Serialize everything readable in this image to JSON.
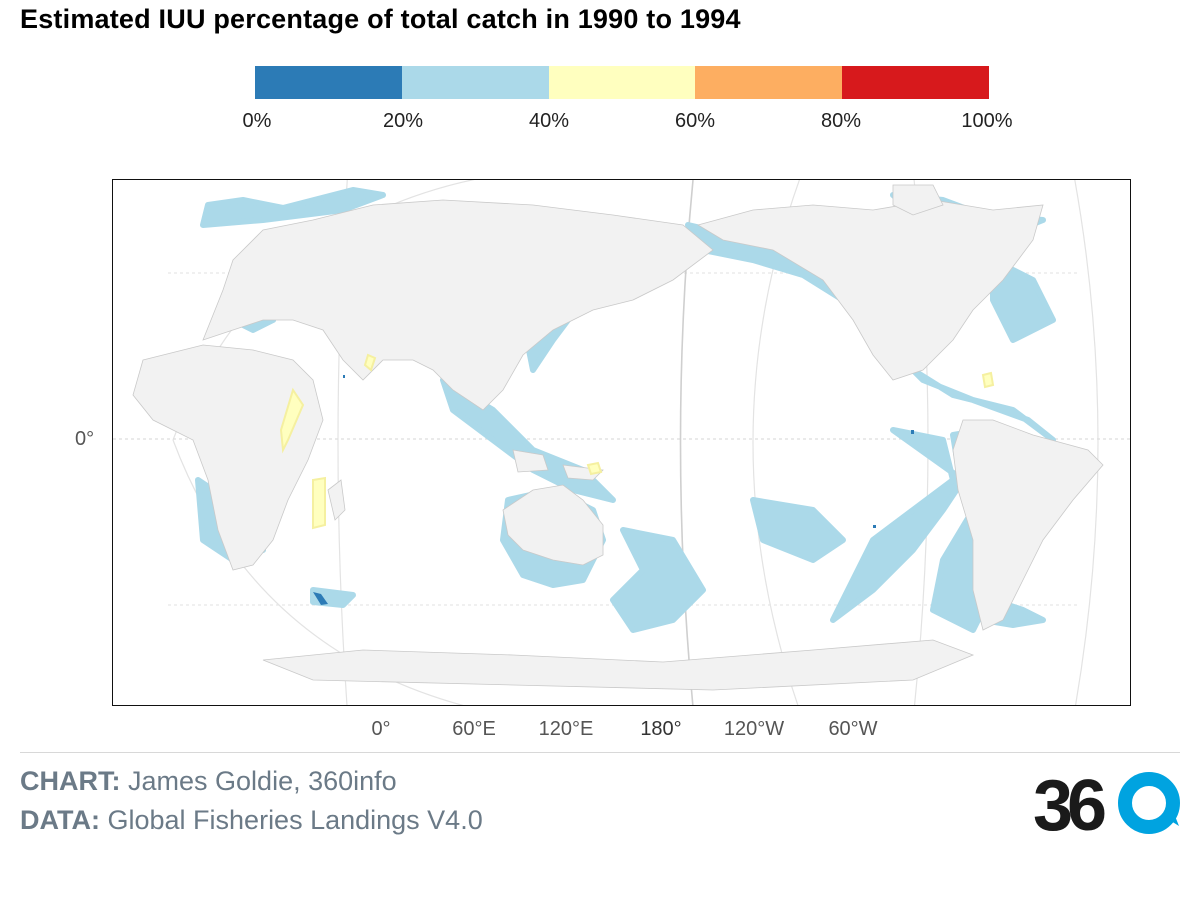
{
  "title": "Estimated IUU percentage of total catch in 1990 to 1994",
  "legend": {
    "colors": [
      "#2c7bb6",
      "#abd9e9",
      "#ffffbf",
      "#fdae61",
      "#d7191c"
    ],
    "ticks": [
      "0%",
      "20%",
      "40%",
      "60%",
      "80%",
      "100%"
    ]
  },
  "map": {
    "projection": "Pacific-centred equal-earth style",
    "land_color": "#f2f2f2",
    "x_ticks": [
      "0°",
      "60°E",
      "120°E",
      "180°",
      "120°W",
      "60°W"
    ],
    "y_ticks": [
      "0°"
    ],
    "dominant_category": "20%–40%"
  },
  "credits": {
    "chart_label": "CHART:",
    "chart_value": "James Goldie, 360info",
    "data_label": "DATA:",
    "data_value": "Global Fisheries Landings V4.0"
  },
  "logo": {
    "text": "360",
    "accent": "#00a3e0"
  }
}
